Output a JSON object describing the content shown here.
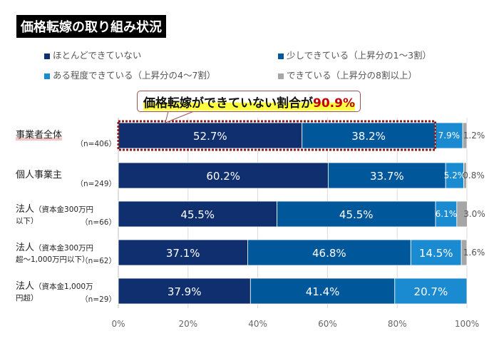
{
  "chart_data": {
    "type": "bar",
    "orientation": "horizontal-stacked-100",
    "title": "価格転嫁の取り組み状況",
    "annotation": {
      "text": "価格転嫁ができていない割合が",
      "value": "90.9%"
    },
    "categories": [
      {
        "label": "事業者全体",
        "sub": "",
        "n": "（n=406）"
      },
      {
        "label": "個人事業主",
        "sub": "",
        "n": "（n=249）"
      },
      {
        "label": "法人",
        "sub": "（資本金300万円以下）",
        "n": "（n=66）"
      },
      {
        "label": "法人",
        "sub": "（資本金300万円超～1,000万円以下）",
        "n": "（n=62）"
      },
      {
        "label": "法人",
        "sub": "（資本金1,000万円超）",
        "n": "（n=29）"
      }
    ],
    "series": [
      {
        "name": "ほとんどできていない",
        "color": "#0f2f6e",
        "values": [
          52.7,
          60.2,
          45.5,
          37.1,
          37.9
        ]
      },
      {
        "name": "少しできている（上昇分の1～3割）",
        "color": "#00579a",
        "values": [
          38.2,
          33.7,
          45.5,
          46.8,
          41.4
        ]
      },
      {
        "name": "ある程度できている（上昇分の4～7割）",
        "color": "#1a8bd0",
        "values": [
          7.9,
          5.2,
          6.1,
          14.5,
          20.7
        ]
      },
      {
        "name": "できている（上昇分の8割以上）",
        "color": "#a6a6a6",
        "values": [
          1.2,
          0.8,
          3.0,
          1.6,
          null
        ]
      }
    ],
    "xlim": [
      0,
      100
    ],
    "xticks": [
      "0%",
      "20%",
      "40%",
      "60%",
      "80%",
      "100%"
    ],
    "grid": true,
    "legend_position": "top"
  }
}
